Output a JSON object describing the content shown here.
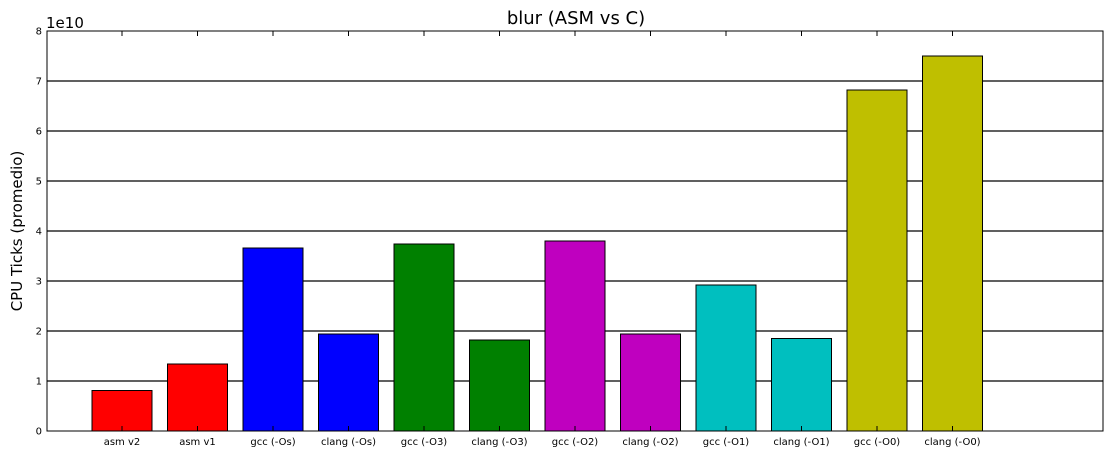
{
  "chart_data": {
    "type": "bar",
    "title": "blur (ASM vs C)",
    "xlabel": "",
    "ylabel": "CPU Ticks (promedio)",
    "y_offset_label": "1e10",
    "y_scale": 10000000000,
    "ylim": [
      0,
      8
    ],
    "yticks": [
      "0",
      "1",
      "2",
      "3",
      "4",
      "5",
      "6",
      "7",
      "8"
    ],
    "grid": "horizontal",
    "categories": [
      "asm v2",
      "asm v1",
      "gcc (-Os)",
      "clang (-Os)",
      "gcc (-O3)",
      "clang (-O3)",
      "gcc (-O2)",
      "clang (-O2)",
      "gcc (-O1)",
      "clang (-O1)",
      "gcc (-O0)",
      "clang (-O0)"
    ],
    "values": [
      0.81,
      1.34,
      3.66,
      1.94,
      3.74,
      1.82,
      3.8,
      1.94,
      2.92,
      1.85,
      6.82,
      7.5
    ],
    "colors": [
      "#ff0000",
      "#ff0000",
      "#0000ff",
      "#0000ff",
      "#008000",
      "#008000",
      "#bf00bf",
      "#bf00bf",
      "#00bfbf",
      "#00bfbf",
      "#bfbf00",
      "#bfbf00"
    ]
  }
}
